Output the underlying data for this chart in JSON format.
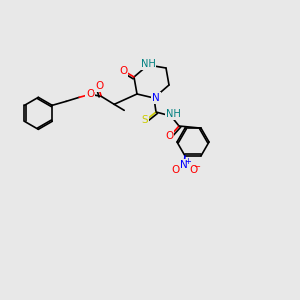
{
  "bg_color": "#e8e8e8",
  "bond_color": "#000000",
  "atom_colors": {
    "O": "#ff0000",
    "N": "#0000ff",
    "NH": "#008080",
    "S": "#cccc00",
    "NO2_N": "#0000ff",
    "NO2_O": "#ff0000"
  },
  "font_size": 7.5,
  "bond_width": 1.2
}
